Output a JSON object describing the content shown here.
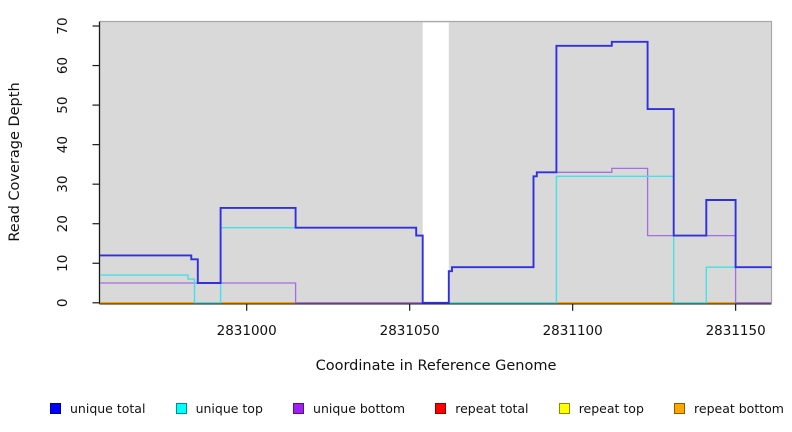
{
  "chart_data": {
    "type": "line",
    "subtype": "step",
    "title": "",
    "xlabel": "Coordinate in Reference Genome",
    "ylabel": "Read Coverage Depth",
    "xlim": [
      2830955,
      2831161
    ],
    "ylim": [
      0,
      70
    ],
    "xticks": [
      2831000,
      2831050,
      2831100,
      2831150
    ],
    "yticks": [
      0,
      10,
      20,
      30,
      40,
      50,
      60,
      70
    ],
    "grid": false,
    "legend_position": "bottom",
    "panel_bg": "#d9d9d9",
    "panel_border": "#a8a8a8",
    "axis_color": "#1a1a1a",
    "gap_band": {
      "x_from": 2831054,
      "x_to": 2831062,
      "color": "#ffffff"
    },
    "series": [
      {
        "name": "repeat total",
        "color": "#e01010",
        "width": 1.2,
        "points": [
          [
            2830955,
            0
          ],
          [
            2831161,
            0
          ]
        ]
      },
      {
        "name": "repeat top",
        "color": "#f2f20a",
        "width": 1.2,
        "points": [
          [
            2830955,
            0
          ],
          [
            2831161,
            0
          ]
        ]
      },
      {
        "name": "repeat bottom",
        "color": "#ff9f00",
        "width": 1.5,
        "points": [
          [
            2830955,
            0
          ],
          [
            2831161,
            0
          ]
        ]
      },
      {
        "name": "unique bottom",
        "color": "#a36fe0",
        "width": 1.3,
        "points": [
          [
            2830955,
            5
          ],
          [
            2831015,
            0
          ],
          [
            2831062,
            8
          ],
          [
            2831063,
            9
          ],
          [
            2831088,
            32
          ],
          [
            2831089,
            33
          ],
          [
            2831112,
            34
          ],
          [
            2831123,
            17
          ],
          [
            2831150,
            0
          ],
          [
            2831161,
            0
          ]
        ]
      },
      {
        "name": "unique top",
        "color": "#45e0e8",
        "width": 1.4,
        "points": [
          [
            2830955,
            7
          ],
          [
            2830982,
            6
          ],
          [
            2830984,
            0
          ],
          [
            2830992,
            19
          ],
          [
            2831052,
            17
          ],
          [
            2831054,
            0
          ],
          [
            2831095,
            32
          ],
          [
            2831131,
            0
          ],
          [
            2831141,
            9
          ],
          [
            2831161,
            9
          ]
        ]
      },
      {
        "name": "unique total",
        "color": "#3030e0",
        "width": 1.9,
        "points": [
          [
            2830955,
            12
          ],
          [
            2830983,
            11
          ],
          [
            2830985,
            5
          ],
          [
            2830992,
            24
          ],
          [
            2831015,
            19
          ],
          [
            2831052,
            17
          ],
          [
            2831054,
            0
          ],
          [
            2831062,
            8
          ],
          [
            2831063,
            9
          ],
          [
            2831088,
            32
          ],
          [
            2831089,
            33
          ],
          [
            2831095,
            65
          ],
          [
            2831112,
            66
          ],
          [
            2831123,
            49
          ],
          [
            2831131,
            17
          ],
          [
            2831141,
            26
          ],
          [
            2831150,
            9
          ],
          [
            2831161,
            9
          ]
        ]
      }
    ]
  },
  "legend": {
    "items": [
      {
        "label": "unique total",
        "fill": "#0000ff"
      },
      {
        "label": "unique top",
        "fill": "#00ffff"
      },
      {
        "label": "unique bottom",
        "fill": "#a020f0"
      },
      {
        "label": "repeat total",
        "fill": "#ff0000"
      },
      {
        "label": "repeat top",
        "fill": "#ffff00"
      },
      {
        "label": "repeat bottom",
        "fill": "#ffa500"
      }
    ]
  }
}
